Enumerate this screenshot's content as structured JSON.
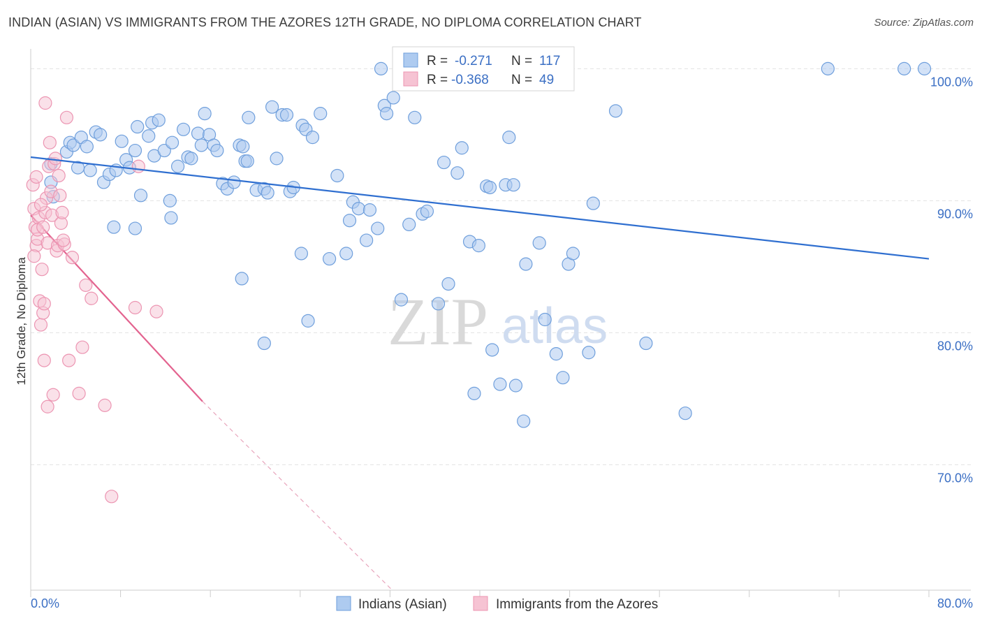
{
  "title": "INDIAN (ASIAN) VS IMMIGRANTS FROM THE AZORES 12TH GRADE, NO DIPLOMA CORRELATION CHART",
  "source": "Source: ZipAtlas.com",
  "watermark": {
    "zip": "ZIP",
    "atlas": "atlas"
  },
  "colors": {
    "blue_fill": "#aecbf0",
    "blue_stroke": "#6f9fdc",
    "blue_line": "#2f6fd0",
    "pink_fill": "#f6c3d3",
    "pink_stroke": "#ec95b2",
    "pink_line": "#e3638f",
    "grid": "#e3e3e3",
    "tick_text": "#3b6fc4"
  },
  "legend_box": {
    "rows": [
      {
        "r_label": "R =",
        "r_value": "-0.271",
        "n_label": "N =",
        "n_value": "117"
      },
      {
        "r_label": "R =",
        "r_value": "-0.368",
        "n_label": "N =",
        "n_value": "49"
      }
    ]
  },
  "bottom_legend": [
    "Indians (Asian)",
    "Immigrants from the Azores"
  ],
  "chart_data": {
    "type": "scatter",
    "xlabel": "",
    "ylabel": "12th Grade, No Diploma",
    "x_ticks": [
      "0.0%",
      "80.0%"
    ],
    "y_ticks": [
      "100.0%",
      "90.0%",
      "80.0%",
      "70.0%"
    ],
    "xlim": [
      0,
      80
    ],
    "ylim": [
      60.5,
      101.5
    ],
    "grid": true,
    "legend_position": "top-center",
    "series": [
      {
        "name": "Indians (Asian)",
        "r": -0.271,
        "n": 117,
        "trend": {
          "x0": 0,
          "y0": 93.3,
          "x1": 80,
          "y1": 85.6
        },
        "points": [
          [
            31.2,
            100.0
          ],
          [
            47.7,
            100.0
          ],
          [
            71.0,
            100.0
          ],
          [
            77.8,
            100.0
          ],
          [
            79.6,
            100.0
          ],
          [
            1.8,
            92.8
          ],
          [
            1.8,
            91.4
          ],
          [
            2.0,
            90.3
          ],
          [
            3.2,
            93.7
          ],
          [
            3.5,
            94.4
          ],
          [
            3.8,
            94.2
          ],
          [
            4.2,
            92.5
          ],
          [
            4.5,
            94.8
          ],
          [
            5.0,
            94.1
          ],
          [
            5.3,
            92.3
          ],
          [
            5.8,
            95.2
          ],
          [
            6.2,
            95.0
          ],
          [
            6.5,
            91.4
          ],
          [
            7.0,
            92.0
          ],
          [
            7.6,
            92.3
          ],
          [
            8.1,
            94.5
          ],
          [
            8.5,
            93.1
          ],
          [
            8.8,
            92.5
          ],
          [
            9.3,
            93.8
          ],
          [
            9.5,
            95.6
          ],
          [
            9.8,
            90.4
          ],
          [
            10.5,
            94.9
          ],
          [
            10.8,
            95.9
          ],
          [
            11.0,
            93.4
          ],
          [
            11.4,
            96.1
          ],
          [
            11.9,
            93.8
          ],
          [
            12.4,
            90.0
          ],
          [
            12.6,
            94.4
          ],
          [
            13.1,
            92.6
          ],
          [
            13.6,
            95.4
          ],
          [
            14.0,
            93.3
          ],
          [
            14.3,
            93.2
          ],
          [
            14.9,
            95.1
          ],
          [
            15.2,
            94.2
          ],
          [
            15.5,
            96.6
          ],
          [
            15.9,
            95.0
          ],
          [
            16.3,
            94.2
          ],
          [
            16.6,
            93.8
          ],
          [
            17.1,
            91.3
          ],
          [
            17.5,
            90.9
          ],
          [
            18.1,
            91.4
          ],
          [
            18.6,
            94.2
          ],
          [
            18.9,
            94.1
          ],
          [
            19.1,
            93.0
          ],
          [
            19.4,
            96.3
          ],
          [
            20.1,
            90.8
          ],
          [
            20.8,
            90.9
          ],
          [
            21.1,
            90.6
          ],
          [
            21.5,
            97.1
          ],
          [
            21.9,
            93.2
          ],
          [
            22.4,
            96.5
          ],
          [
            22.8,
            96.5
          ],
          [
            23.1,
            90.7
          ],
          [
            23.4,
            91.0
          ],
          [
            24.2,
            95.7
          ],
          [
            24.5,
            95.4
          ],
          [
            25.1,
            94.8
          ],
          [
            25.8,
            96.6
          ],
          [
            26.6,
            85.6
          ],
          [
            27.3,
            91.9
          ],
          [
            28.1,
            86.0
          ],
          [
            28.4,
            88.5
          ],
          [
            28.7,
            89.9
          ],
          [
            29.2,
            89.4
          ],
          [
            29.9,
            87.0
          ],
          [
            30.2,
            89.3
          ],
          [
            30.9,
            87.9
          ],
          [
            31.5,
            97.2
          ],
          [
            31.7,
            96.6
          ],
          [
            32.3,
            97.8
          ],
          [
            33.0,
            82.5
          ],
          [
            33.7,
            88.2
          ],
          [
            34.2,
            96.3
          ],
          [
            34.9,
            89.0
          ],
          [
            35.3,
            89.2
          ],
          [
            36.3,
            82.2
          ],
          [
            36.8,
            92.9
          ],
          [
            37.2,
            83.7
          ],
          [
            38.0,
            92.1
          ],
          [
            38.4,
            94.0
          ],
          [
            39.1,
            86.9
          ],
          [
            39.9,
            86.6
          ],
          [
            40.6,
            91.1
          ],
          [
            40.9,
            91.0
          ],
          [
            42.3,
            91.2
          ],
          [
            42.6,
            94.8
          ],
          [
            43.0,
            91.2
          ],
          [
            44.1,
            85.2
          ],
          [
            45.3,
            86.8
          ],
          [
            45.8,
            81.0
          ],
          [
            46.8,
            78.4
          ],
          [
            47.4,
            76.6
          ],
          [
            47.9,
            85.2
          ],
          [
            48.3,
            86.0
          ],
          [
            49.7,
            78.5
          ],
          [
            50.1,
            89.8
          ],
          [
            52.1,
            96.8
          ],
          [
            54.8,
            79.2
          ],
          [
            58.3,
            73.9
          ],
          [
            41.1,
            78.7
          ],
          [
            41.8,
            76.1
          ],
          [
            39.5,
            75.4
          ],
          [
            43.9,
            73.3
          ],
          [
            43.2,
            76.0
          ],
          [
            18.8,
            84.1
          ],
          [
            19.3,
            93.0
          ],
          [
            24.7,
            80.9
          ],
          [
            20.8,
            79.2
          ],
          [
            24.1,
            86.0
          ],
          [
            9.3,
            87.9
          ],
          [
            7.4,
            88.0
          ],
          [
            12.5,
            88.7
          ]
        ]
      },
      {
        "name": "Immigrants from the Azores",
        "r": -0.368,
        "n": 49,
        "trend": {
          "x0": 0,
          "y0": 88.9,
          "x1": 15.3,
          "y1": 74.8,
          "dash_x1": 32.2,
          "dash_y1": 60.5
        },
        "points": [
          [
            0.2,
            91.2
          ],
          [
            0.3,
            89.4
          ],
          [
            0.4,
            88.0
          ],
          [
            0.5,
            86.6
          ],
          [
            0.6,
            87.1
          ],
          [
            0.7,
            88.7
          ],
          [
            0.8,
            82.4
          ],
          [
            0.9,
            80.6
          ],
          [
            1.0,
            84.8
          ],
          [
            1.1,
            81.5
          ],
          [
            1.2,
            82.2
          ],
          [
            1.2,
            77.9
          ],
          [
            1.3,
            89.1
          ],
          [
            1.4,
            90.2
          ],
          [
            1.5,
            86.8
          ],
          [
            1.6,
            92.6
          ],
          [
            1.7,
            94.4
          ],
          [
            1.8,
            90.7
          ],
          [
            1.9,
            88.9
          ],
          [
            2.1,
            92.8
          ],
          [
            2.2,
            93.2
          ],
          [
            2.3,
            86.2
          ],
          [
            2.4,
            86.6
          ],
          [
            2.5,
            91.9
          ],
          [
            2.6,
            90.4
          ],
          [
            2.7,
            88.3
          ],
          [
            2.8,
            89.1
          ],
          [
            3.0,
            86.7
          ],
          [
            3.2,
            96.3
          ],
          [
            3.4,
            77.9
          ],
          [
            3.7,
            85.7
          ],
          [
            4.3,
            75.4
          ],
          [
            4.6,
            78.9
          ],
          [
            4.9,
            83.6
          ],
          [
            5.4,
            82.6
          ],
          [
            6.6,
            74.5
          ],
          [
            7.2,
            67.6
          ],
          [
            9.3,
            81.9
          ],
          [
            11.2,
            81.6
          ],
          [
            2.0,
            75.3
          ],
          [
            1.5,
            74.4
          ],
          [
            1.3,
            97.4
          ],
          [
            0.6,
            87.8
          ],
          [
            0.9,
            89.7
          ],
          [
            1.1,
            88.0
          ],
          [
            2.9,
            87.0
          ],
          [
            0.5,
            91.8
          ],
          [
            9.6,
            92.6
          ],
          [
            0.3,
            85.8
          ]
        ]
      }
    ]
  }
}
